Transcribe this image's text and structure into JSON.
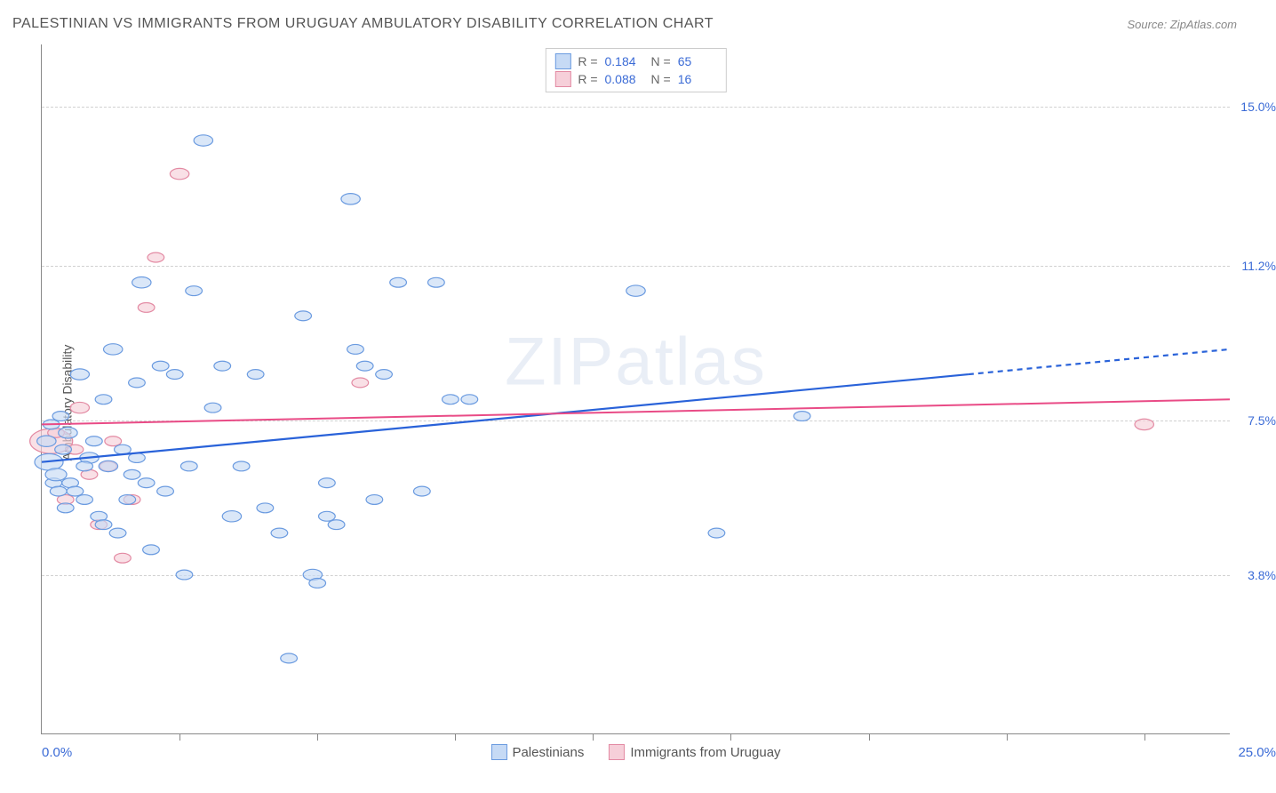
{
  "title": "PALESTINIAN VS IMMIGRANTS FROM URUGUAY AMBULATORY DISABILITY CORRELATION CHART",
  "source": "Source: ZipAtlas.com",
  "watermark": "ZIPatlas",
  "chart": {
    "type": "scatter",
    "ylabel": "Ambulatory Disability",
    "xlim": [
      0.0,
      25.0
    ],
    "ylim": [
      0.0,
      16.5
    ],
    "x_start_label": "0.0%",
    "x_end_label": "25.0%",
    "yticks": [
      {
        "v": 3.8,
        "label": "3.8%"
      },
      {
        "v": 7.5,
        "label": "7.5%"
      },
      {
        "v": 11.2,
        "label": "11.2%"
      },
      {
        "v": 15.0,
        "label": "15.0%"
      }
    ],
    "xticks_major": [
      2.9,
      5.8,
      8.7,
      11.6,
      14.5,
      17.4,
      20.3,
      23.2
    ],
    "background_color": "#ffffff",
    "grid_color": "#d0d0d0",
    "axis_color": "#888888",
    "series": [
      {
        "name": "Palestinians",
        "marker_fill": "#c6daf5",
        "marker_stroke": "#6b9be0",
        "marker_opacity": 0.65,
        "line_color": "#2962d9",
        "line_width": 2.2,
        "R": "0.184",
        "N": "65",
        "trend": {
          "x1": 0.0,
          "y1": 6.5,
          "x2": 19.5,
          "y2": 8.6,
          "dash_x2": 25.0,
          "dash_y2": 9.2
        },
        "points": [
          {
            "x": 0.1,
            "y": 7.0,
            "r": 8
          },
          {
            "x": 0.15,
            "y": 6.5,
            "r": 12
          },
          {
            "x": 0.2,
            "y": 7.4,
            "r": 7
          },
          {
            "x": 0.25,
            "y": 6.0,
            "r": 7
          },
          {
            "x": 0.3,
            "y": 6.2,
            "r": 9
          },
          {
            "x": 0.35,
            "y": 5.8,
            "r": 7
          },
          {
            "x": 0.4,
            "y": 7.6,
            "r": 7
          },
          {
            "x": 0.45,
            "y": 6.8,
            "r": 7
          },
          {
            "x": 0.5,
            "y": 5.4,
            "r": 7
          },
          {
            "x": 0.55,
            "y": 7.2,
            "r": 8
          },
          {
            "x": 0.6,
            "y": 6.0,
            "r": 7
          },
          {
            "x": 0.8,
            "y": 8.6,
            "r": 8
          },
          {
            "x": 0.9,
            "y": 5.6,
            "r": 7
          },
          {
            "x": 1.0,
            "y": 6.6,
            "r": 8
          },
          {
            "x": 1.1,
            "y": 7.0,
            "r": 7
          },
          {
            "x": 1.2,
            "y": 5.2,
            "r": 7
          },
          {
            "x": 1.3,
            "y": 8.0,
            "r": 7
          },
          {
            "x": 1.4,
            "y": 6.4,
            "r": 8
          },
          {
            "x": 1.5,
            "y": 9.2,
            "r": 8
          },
          {
            "x": 1.6,
            "y": 4.8,
            "r": 7
          },
          {
            "x": 1.7,
            "y": 6.8,
            "r": 7
          },
          {
            "x": 1.8,
            "y": 5.6,
            "r": 7
          },
          {
            "x": 1.9,
            "y": 6.2,
            "r": 7
          },
          {
            "x": 2.0,
            "y": 8.4,
            "r": 7
          },
          {
            "x": 2.1,
            "y": 10.8,
            "r": 8
          },
          {
            "x": 2.2,
            "y": 6.0,
            "r": 7
          },
          {
            "x": 2.3,
            "y": 4.4,
            "r": 7
          },
          {
            "x": 2.5,
            "y": 8.8,
            "r": 7
          },
          {
            "x": 2.6,
            "y": 5.8,
            "r": 7
          },
          {
            "x": 2.8,
            "y": 8.6,
            "r": 7
          },
          {
            "x": 3.0,
            "y": 3.8,
            "r": 7
          },
          {
            "x": 3.1,
            "y": 6.4,
            "r": 7
          },
          {
            "x": 3.2,
            "y": 10.6,
            "r": 7
          },
          {
            "x": 3.4,
            "y": 14.2,
            "r": 8
          },
          {
            "x": 3.6,
            "y": 7.8,
            "r": 7
          },
          {
            "x": 3.8,
            "y": 8.8,
            "r": 7
          },
          {
            "x": 4.0,
            "y": 5.2,
            "r": 8
          },
          {
            "x": 4.2,
            "y": 6.4,
            "r": 7
          },
          {
            "x": 4.5,
            "y": 8.6,
            "r": 7
          },
          {
            "x": 4.7,
            "y": 5.4,
            "r": 7
          },
          {
            "x": 5.0,
            "y": 4.8,
            "r": 7
          },
          {
            "x": 5.2,
            "y": 1.8,
            "r": 7
          },
          {
            "x": 5.5,
            "y": 10.0,
            "r": 7
          },
          {
            "x": 5.7,
            "y": 3.8,
            "r": 8
          },
          {
            "x": 6.0,
            "y": 6.0,
            "r": 7
          },
          {
            "x": 6.2,
            "y": 5.0,
            "r": 7
          },
          {
            "x": 6.0,
            "y": 5.2,
            "r": 7
          },
          {
            "x": 5.8,
            "y": 3.6,
            "r": 7
          },
          {
            "x": 6.5,
            "y": 12.8,
            "r": 8
          },
          {
            "x": 6.8,
            "y": 8.8,
            "r": 7
          },
          {
            "x": 6.6,
            "y": 9.2,
            "r": 7
          },
          {
            "x": 7.0,
            "y": 5.6,
            "r": 7
          },
          {
            "x": 7.2,
            "y": 8.6,
            "r": 7
          },
          {
            "x": 7.5,
            "y": 10.8,
            "r": 7
          },
          {
            "x": 8.0,
            "y": 5.8,
            "r": 7
          },
          {
            "x": 8.3,
            "y": 10.8,
            "r": 7
          },
          {
            "x": 8.6,
            "y": 8.0,
            "r": 7
          },
          {
            "x": 9.0,
            "y": 8.0,
            "r": 7
          },
          {
            "x": 12.5,
            "y": 10.6,
            "r": 8
          },
          {
            "x": 14.2,
            "y": 4.8,
            "r": 7
          },
          {
            "x": 16.0,
            "y": 7.6,
            "r": 7
          },
          {
            "x": 1.3,
            "y": 5.0,
            "r": 7
          },
          {
            "x": 2.0,
            "y": 6.6,
            "r": 7
          },
          {
            "x": 0.7,
            "y": 5.8,
            "r": 7
          },
          {
            "x": 0.9,
            "y": 6.4,
            "r": 7
          }
        ]
      },
      {
        "name": "Immigrants from Uruguay",
        "marker_fill": "#f6cfd9",
        "marker_stroke": "#e38aa3",
        "marker_opacity": 0.65,
        "line_color": "#e94b86",
        "line_width": 2.0,
        "R": "0.088",
        "N": "16",
        "trend": {
          "x1": 0.0,
          "y1": 7.4,
          "x2": 25.0,
          "y2": 8.0
        },
        "points": [
          {
            "x": 0.2,
            "y": 7.0,
            "r": 18
          },
          {
            "x": 0.3,
            "y": 7.2,
            "r": 7
          },
          {
            "x": 0.5,
            "y": 5.6,
            "r": 7
          },
          {
            "x": 0.7,
            "y": 6.8,
            "r": 7
          },
          {
            "x": 0.8,
            "y": 7.8,
            "r": 8
          },
          {
            "x": 1.0,
            "y": 6.2,
            "r": 7
          },
          {
            "x": 1.2,
            "y": 5.0,
            "r": 7
          },
          {
            "x": 1.4,
            "y": 6.4,
            "r": 7
          },
          {
            "x": 1.7,
            "y": 4.2,
            "r": 7
          },
          {
            "x": 1.9,
            "y": 5.6,
            "r": 7
          },
          {
            "x": 2.2,
            "y": 10.2,
            "r": 7
          },
          {
            "x": 2.4,
            "y": 11.4,
            "r": 7
          },
          {
            "x": 2.9,
            "y": 13.4,
            "r": 8
          },
          {
            "x": 6.7,
            "y": 8.4,
            "r": 7
          },
          {
            "x": 1.5,
            "y": 7.0,
            "r": 7
          },
          {
            "x": 23.2,
            "y": 7.4,
            "r": 8
          }
        ]
      }
    ]
  }
}
